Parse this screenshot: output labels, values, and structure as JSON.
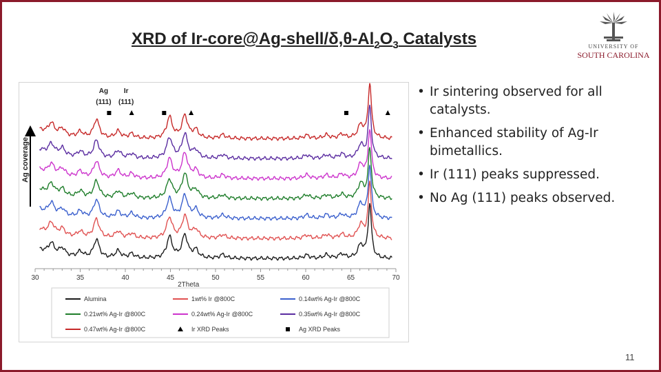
{
  "slide": {
    "title_main": "XRD of Ir-core@Ag-shell/δ,θ-Al",
    "title_sub1": "2",
    "title_mid": "O",
    "title_sub2": "3",
    "title_end": " Catalysts",
    "logo_line1": "UNIVERSITY OF",
    "logo_line2": "SOUTH CAROLINA",
    "logo_icon": "palmetto-tree-icon",
    "bullets": [
      "Ir sintering observed for all catalysts.",
      "Enhanced stability of Ag-Ir bimetallics.",
      "Ir (111) peaks suppressed.",
      "No Ag (111) peaks observed."
    ],
    "page_number": "11",
    "accent_color": "#8b1a2b"
  },
  "chart_data": {
    "type": "line",
    "xlabel": "2Theta",
    "ylabel": "Ag coverage",
    "xlim": [
      30,
      70
    ],
    "x_ticks": [
      "30",
      "35",
      "40",
      "45",
      "50",
      "55",
      "60",
      "65",
      "70"
    ],
    "grid": false,
    "legend_placement": "bottom",
    "annotations": [
      {
        "label": "Ag",
        "label2": "(111)",
        "x": 38.2
      },
      {
        "label": "Ir",
        "label2": "(111)",
        "x": 40.7
      }
    ],
    "series": [
      {
        "name": "Alumina",
        "color": "#1a1a1a"
      },
      {
        "name": "1wt% Ir @800C",
        "color": "#e05050"
      },
      {
        "name": "0.14wt% Ag-Ir @800C",
        "color": "#3a5fcd"
      },
      {
        "name": "0.21wt% Ag-Ir @800C",
        "color": "#1e7d2a"
      },
      {
        "name": "0.24wt% Ag-Ir @800C",
        "color": "#cc33cc"
      },
      {
        "name": "0.35wt% Ag-Ir @800C",
        "color": "#5a2ca0"
      },
      {
        "name": "0.47wt% Ag-Ir @800C",
        "color": "#c62828"
      }
    ],
    "markers": [
      {
        "name": "Ir XRD Peaks",
        "symbol": "triangle",
        "x": [
          40.7,
          47.3,
          69.1
        ]
      },
      {
        "name": "Ag XRD Peaks",
        "symbol": "square",
        "x": [
          38.2,
          44.3,
          64.5
        ]
      }
    ],
    "peaks": [
      {
        "x": 31.8,
        "h": 0.45
      },
      {
        "x": 33.0,
        "h": 0.3
      },
      {
        "x": 35.0,
        "h": 0.25
      },
      {
        "x": 36.8,
        "h": 0.75
      },
      {
        "x": 39.2,
        "h": 0.3
      },
      {
        "x": 40.7,
        "h": 0.2
      },
      {
        "x": 44.9,
        "h": 0.85
      },
      {
        "x": 46.6,
        "h": 1.0
      },
      {
        "x": 47.8,
        "h": 0.35
      },
      {
        "x": 50.8,
        "h": 0.15
      },
      {
        "x": 60.1,
        "h": 0.15
      },
      {
        "x": 62.3,
        "h": 0.15
      },
      {
        "x": 64.0,
        "h": 0.18
      },
      {
        "x": 66.1,
        "h": 0.6
      },
      {
        "x": 67.1,
        "h": 2.2
      }
    ]
  }
}
